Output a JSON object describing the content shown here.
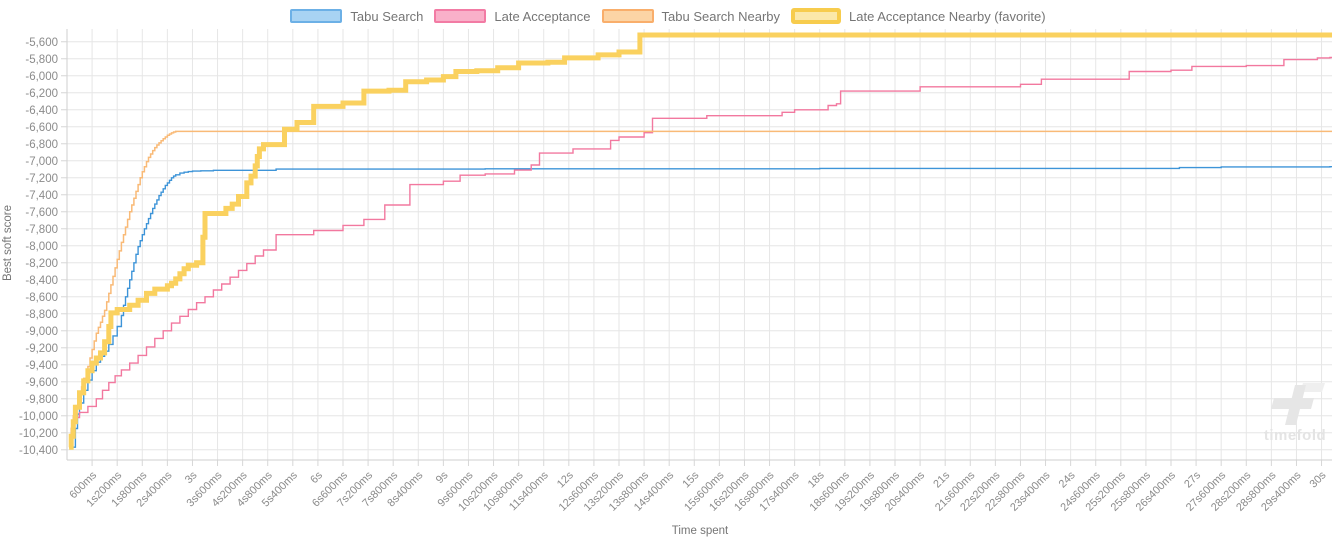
{
  "watermark": {
    "label": "timefold"
  },
  "chart_data": {
    "type": "line",
    "step": true,
    "title": "",
    "xlabel": "Time spent",
    "ylabel": "Best soft score",
    "legend_position": "top",
    "grid": true,
    "x_tick_seconds_step": 0.6,
    "xlim_seconds": [
      0,
      30.25
    ],
    "ylim": [
      -10520,
      -5450
    ],
    "x_ticks": [
      "600ms",
      "1s200ms",
      "1s800ms",
      "2s400ms",
      "3s",
      "3s600ms",
      "4s200ms",
      "4s800ms",
      "5s400ms",
      "6s",
      "6s600ms",
      "7s200ms",
      "7s800ms",
      "8s400ms",
      "9s",
      "9s600ms",
      "10s200ms",
      "10s800ms",
      "11s400ms",
      "12s",
      "12s600ms",
      "13s200ms",
      "13s800ms",
      "14s400ms",
      "15s",
      "15s600ms",
      "16s200ms",
      "16s800ms",
      "17s400ms",
      "18s",
      "18s600ms",
      "19s200ms",
      "19s800ms",
      "20s400ms",
      "21s",
      "21s600ms",
      "22s200ms",
      "22s800ms",
      "23s400ms",
      "24s",
      "24s600ms",
      "25s200ms",
      "25s800ms",
      "26s400ms",
      "27s",
      "27s600ms",
      "28s200ms",
      "28s800ms",
      "29s400ms",
      "30s"
    ],
    "y_ticks": [
      -5600,
      -5800,
      -6000,
      -6200,
      -6400,
      -6600,
      -6800,
      -7000,
      -7200,
      -7400,
      -7600,
      -7800,
      -8000,
      -8200,
      -8400,
      -8600,
      -8800,
      -9000,
      -9200,
      -9400,
      -9600,
      -9800,
      -10000,
      -10200,
      -10400
    ],
    "series": [
      {
        "name": "Tabu Search",
        "color": "#3D94D8",
        "legend_fill": "#A8D3F3",
        "legend_border": "#6CB0E6",
        "line_width": 1.4,
        "favorite": false,
        "points": [
          [
            0.15,
            -10370
          ],
          [
            0.2,
            -10150
          ],
          [
            0.25,
            -9980
          ],
          [
            0.3,
            -9850
          ],
          [
            0.4,
            -9700
          ],
          [
            0.5,
            -9580
          ],
          [
            0.6,
            -9470
          ],
          [
            0.7,
            -9370
          ],
          [
            0.8,
            -9300
          ],
          [
            0.9,
            -9240
          ],
          [
            1.0,
            -9160
          ],
          [
            1.1,
            -9060
          ],
          [
            1.2,
            -8950
          ],
          [
            1.3,
            -8820
          ],
          [
            1.35,
            -8700
          ],
          [
            1.4,
            -8600
          ],
          [
            1.45,
            -8500
          ],
          [
            1.5,
            -8400
          ],
          [
            1.55,
            -8300
          ],
          [
            1.6,
            -8200
          ],
          [
            1.65,
            -8100
          ],
          [
            1.7,
            -8010
          ],
          [
            1.75,
            -7940
          ],
          [
            1.8,
            -7870
          ],
          [
            1.85,
            -7800
          ],
          [
            1.9,
            -7740
          ],
          [
            1.95,
            -7680
          ],
          [
            2.0,
            -7620
          ],
          [
            2.05,
            -7560
          ],
          [
            2.1,
            -7510
          ],
          [
            2.15,
            -7460
          ],
          [
            2.2,
            -7410
          ],
          [
            2.25,
            -7370
          ],
          [
            2.3,
            -7330
          ],
          [
            2.35,
            -7290
          ],
          [
            2.4,
            -7260
          ],
          [
            2.45,
            -7230
          ],
          [
            2.5,
            -7200
          ],
          [
            2.55,
            -7180
          ],
          [
            2.6,
            -7165
          ],
          [
            2.7,
            -7145
          ],
          [
            2.8,
            -7135
          ],
          [
            2.9,
            -7128
          ],
          [
            3.0,
            -7122
          ],
          [
            3.2,
            -7118
          ],
          [
            3.5,
            -7112
          ],
          [
            5.0,
            -7098
          ],
          [
            10.0,
            -7094
          ],
          [
            18.0,
            -7090
          ],
          [
            26.6,
            -7080
          ],
          [
            27.6,
            -7072
          ],
          [
            30.2,
            -7070
          ]
        ]
      },
      {
        "name": "Late Acceptance",
        "color": "#F2789F",
        "legend_fill": "#F9B0C9",
        "legend_border": "#F27BA4",
        "line_width": 1.4,
        "favorite": false,
        "points": [
          [
            0.05,
            -10370
          ],
          [
            0.1,
            -10150
          ],
          [
            0.15,
            -10020
          ],
          [
            0.3,
            -9960
          ],
          [
            0.5,
            -9890
          ],
          [
            0.7,
            -9800
          ],
          [
            0.85,
            -9700
          ],
          [
            1.0,
            -9610
          ],
          [
            1.15,
            -9530
          ],
          [
            1.3,
            -9460
          ],
          [
            1.5,
            -9380
          ],
          [
            1.7,
            -9290
          ],
          [
            1.9,
            -9190
          ],
          [
            2.1,
            -9090
          ],
          [
            2.3,
            -9000
          ],
          [
            2.5,
            -8910
          ],
          [
            2.7,
            -8830
          ],
          [
            2.9,
            -8750
          ],
          [
            3.1,
            -8670
          ],
          [
            3.3,
            -8600
          ],
          [
            3.5,
            -8520
          ],
          [
            3.7,
            -8450
          ],
          [
            3.9,
            -8370
          ],
          [
            4.1,
            -8290
          ],
          [
            4.3,
            -8210
          ],
          [
            4.5,
            -8120
          ],
          [
            4.7,
            -8050
          ],
          [
            5.0,
            -7870
          ],
          [
            5.9,
            -7820
          ],
          [
            6.6,
            -7760
          ],
          [
            7.1,
            -7690
          ],
          [
            7.6,
            -7520
          ],
          [
            8.2,
            -7280
          ],
          [
            9.0,
            -7240
          ],
          [
            9.4,
            -7170
          ],
          [
            10.0,
            -7155
          ],
          [
            10.7,
            -7110
          ],
          [
            11.1,
            -7050
          ],
          [
            11.3,
            -6910
          ],
          [
            12.1,
            -6860
          ],
          [
            13.0,
            -6760
          ],
          [
            13.2,
            -6720
          ],
          [
            13.8,
            -6670
          ],
          [
            14.0,
            -6500
          ],
          [
            15.3,
            -6470
          ],
          [
            17.1,
            -6430
          ],
          [
            17.4,
            -6400
          ],
          [
            18.2,
            -6350
          ],
          [
            18.4,
            -6330
          ],
          [
            18.5,
            -6180
          ],
          [
            20.4,
            -6130
          ],
          [
            22.8,
            -6100
          ],
          [
            23.3,
            -6040
          ],
          [
            25.4,
            -5950
          ],
          [
            26.4,
            -5935
          ],
          [
            26.9,
            -5890
          ],
          [
            28.2,
            -5880
          ],
          [
            29.1,
            -5810
          ],
          [
            29.9,
            -5790
          ],
          [
            30.2,
            -5785
          ]
        ]
      },
      {
        "name": "Tabu Search Nearby",
        "color": "#F9BA77",
        "legend_fill": "#FCD4A5",
        "legend_border": "#F9AE6B",
        "line_width": 1.5,
        "favorite": false,
        "points": [
          [
            0.05,
            -10370
          ],
          [
            0.1,
            -10150
          ],
          [
            0.15,
            -10000
          ],
          [
            0.2,
            -9880
          ],
          [
            0.3,
            -9760
          ],
          [
            0.35,
            -9660
          ],
          [
            0.4,
            -9560
          ],
          [
            0.5,
            -9420
          ],
          [
            0.55,
            -9320
          ],
          [
            0.6,
            -9220
          ],
          [
            0.65,
            -9120
          ],
          [
            0.7,
            -9030
          ],
          [
            0.75,
            -8960
          ],
          [
            0.8,
            -8900
          ],
          [
            0.85,
            -8830
          ],
          [
            0.9,
            -8760
          ],
          [
            0.95,
            -8660
          ],
          [
            1.0,
            -8560
          ],
          [
            1.05,
            -8460
          ],
          [
            1.1,
            -8360
          ],
          [
            1.15,
            -8260
          ],
          [
            1.2,
            -8160
          ],
          [
            1.25,
            -8060
          ],
          [
            1.3,
            -7960
          ],
          [
            1.35,
            -7870
          ],
          [
            1.4,
            -7780
          ],
          [
            1.45,
            -7690
          ],
          [
            1.5,
            -7600
          ],
          [
            1.55,
            -7520
          ],
          [
            1.6,
            -7440
          ],
          [
            1.65,
            -7360
          ],
          [
            1.7,
            -7280
          ],
          [
            1.75,
            -7200
          ],
          [
            1.8,
            -7130
          ],
          [
            1.85,
            -7070
          ],
          [
            1.9,
            -7010
          ],
          [
            1.95,
            -6960
          ],
          [
            2.0,
            -6920
          ],
          [
            2.05,
            -6880
          ],
          [
            2.1,
            -6845
          ],
          [
            2.15,
            -6815
          ],
          [
            2.2,
            -6790
          ],
          [
            2.25,
            -6765
          ],
          [
            2.3,
            -6740
          ],
          [
            2.35,
            -6720
          ],
          [
            2.4,
            -6700
          ],
          [
            2.45,
            -6685
          ],
          [
            2.5,
            -6672
          ],
          [
            2.55,
            -6662
          ],
          [
            2.6,
            -6655
          ],
          [
            30.2,
            -6655
          ]
        ]
      },
      {
        "name": "Late Acceptance Nearby (favorite)",
        "color": "#FAD15F",
        "legend_fill": "#FBE8A9",
        "legend_border": "#F7CC4D",
        "line_width": 5,
        "favorite": true,
        "points": [
          [
            0.05,
            -10370
          ],
          [
            0.1,
            -10240
          ],
          [
            0.15,
            -10070
          ],
          [
            0.2,
            -9900
          ],
          [
            0.3,
            -9730
          ],
          [
            0.4,
            -9590
          ],
          [
            0.5,
            -9470
          ],
          [
            0.6,
            -9380
          ],
          [
            0.7,
            -9320
          ],
          [
            0.8,
            -9260
          ],
          [
            0.9,
            -9130
          ],
          [
            1.0,
            -8950
          ],
          [
            1.05,
            -8790
          ],
          [
            1.2,
            -8750
          ],
          [
            1.5,
            -8700
          ],
          [
            1.7,
            -8640
          ],
          [
            1.9,
            -8560
          ],
          [
            2.1,
            -8510
          ],
          [
            2.4,
            -8470
          ],
          [
            2.5,
            -8440
          ],
          [
            2.6,
            -8390
          ],
          [
            2.7,
            -8330
          ],
          [
            2.8,
            -8270
          ],
          [
            2.9,
            -8230
          ],
          [
            3.1,
            -8200
          ],
          [
            3.25,
            -7900
          ],
          [
            3.3,
            -7620
          ],
          [
            3.8,
            -7560
          ],
          [
            3.95,
            -7510
          ],
          [
            4.1,
            -7420
          ],
          [
            4.3,
            -7260
          ],
          [
            4.4,
            -7180
          ],
          [
            4.5,
            -7060
          ],
          [
            4.55,
            -6950
          ],
          [
            4.6,
            -6860
          ],
          [
            4.7,
            -6810
          ],
          [
            5.2,
            -6630
          ],
          [
            5.5,
            -6550
          ],
          [
            5.9,
            -6360
          ],
          [
            6.6,
            -6320
          ],
          [
            7.1,
            -6180
          ],
          [
            7.7,
            -6170
          ],
          [
            8.1,
            -6070
          ],
          [
            8.6,
            -6050
          ],
          [
            9.0,
            -6010
          ],
          [
            9.3,
            -5950
          ],
          [
            9.8,
            -5940
          ],
          [
            10.3,
            -5905
          ],
          [
            10.8,
            -5850
          ],
          [
            11.5,
            -5840
          ],
          [
            11.9,
            -5790
          ],
          [
            12.7,
            -5755
          ],
          [
            13.2,
            -5720
          ],
          [
            13.7,
            -5520
          ],
          [
            30.2,
            -5520
          ]
        ]
      }
    ]
  }
}
